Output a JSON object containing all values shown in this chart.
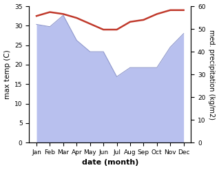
{
  "months": [
    "Jan",
    "Feb",
    "Mar",
    "Apr",
    "May",
    "Jun",
    "Jul",
    "Aug",
    "Sep",
    "Oct",
    "Nov",
    "Dec"
  ],
  "month_indices": [
    0,
    1,
    2,
    3,
    4,
    5,
    6,
    7,
    8,
    9,
    10,
    11
  ],
  "temperature": [
    32.5,
    33.5,
    33.0,
    32.0,
    30.5,
    29.0,
    29.0,
    31.0,
    31.5,
    33.0,
    34.0,
    34.0
  ],
  "precipitation": [
    52.0,
    51.0,
    56.0,
    45.0,
    40.0,
    40.0,
    29.0,
    33.0,
    33.0,
    33.0,
    42.0,
    48.0
  ],
  "temp_color": "#c0392b",
  "precip_fill_color": "#b8c0ee",
  "precip_line_color": "#9099cc",
  "ylim_left": [
    0,
    35
  ],
  "ylim_right": [
    0,
    60
  ],
  "ylabel_left": "max temp (C)",
  "ylabel_right": "med. precipitation (kg/m2)",
  "xlabel": "date (month)",
  "bg_color": "#ffffff",
  "figsize": [
    3.18,
    2.47
  ],
  "dpi": 100
}
